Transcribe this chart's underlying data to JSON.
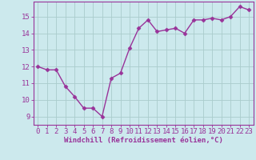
{
  "x": [
    0,
    1,
    2,
    3,
    4,
    5,
    6,
    7,
    8,
    9,
    10,
    11,
    12,
    13,
    14,
    15,
    16,
    17,
    18,
    19,
    20,
    21,
    22,
    23
  ],
  "y": [
    12.0,
    11.8,
    11.8,
    10.8,
    10.2,
    9.5,
    9.5,
    9.0,
    11.3,
    11.6,
    13.1,
    14.3,
    14.8,
    14.1,
    14.2,
    14.3,
    14.0,
    14.8,
    14.8,
    14.9,
    14.8,
    15.0,
    15.6,
    15.4
  ],
  "line_color": "#993399",
  "marker": "D",
  "marker_size": 2.5,
  "bg_color": "#cce9ed",
  "grid_color": "#aacccc",
  "xlabel": "Windchill (Refroidissement éolien,°C)",
  "xlim": [
    -0.5,
    23.5
  ],
  "ylim": [
    8.5,
    15.9
  ],
  "yticks": [
    9,
    10,
    11,
    12,
    13,
    14,
    15
  ],
  "xticks": [
    0,
    1,
    2,
    3,
    4,
    5,
    6,
    7,
    8,
    9,
    10,
    11,
    12,
    13,
    14,
    15,
    16,
    17,
    18,
    19,
    20,
    21,
    22,
    23
  ],
  "label_fontsize": 6.5,
  "tick_fontsize": 6.5,
  "line_width": 1.0
}
